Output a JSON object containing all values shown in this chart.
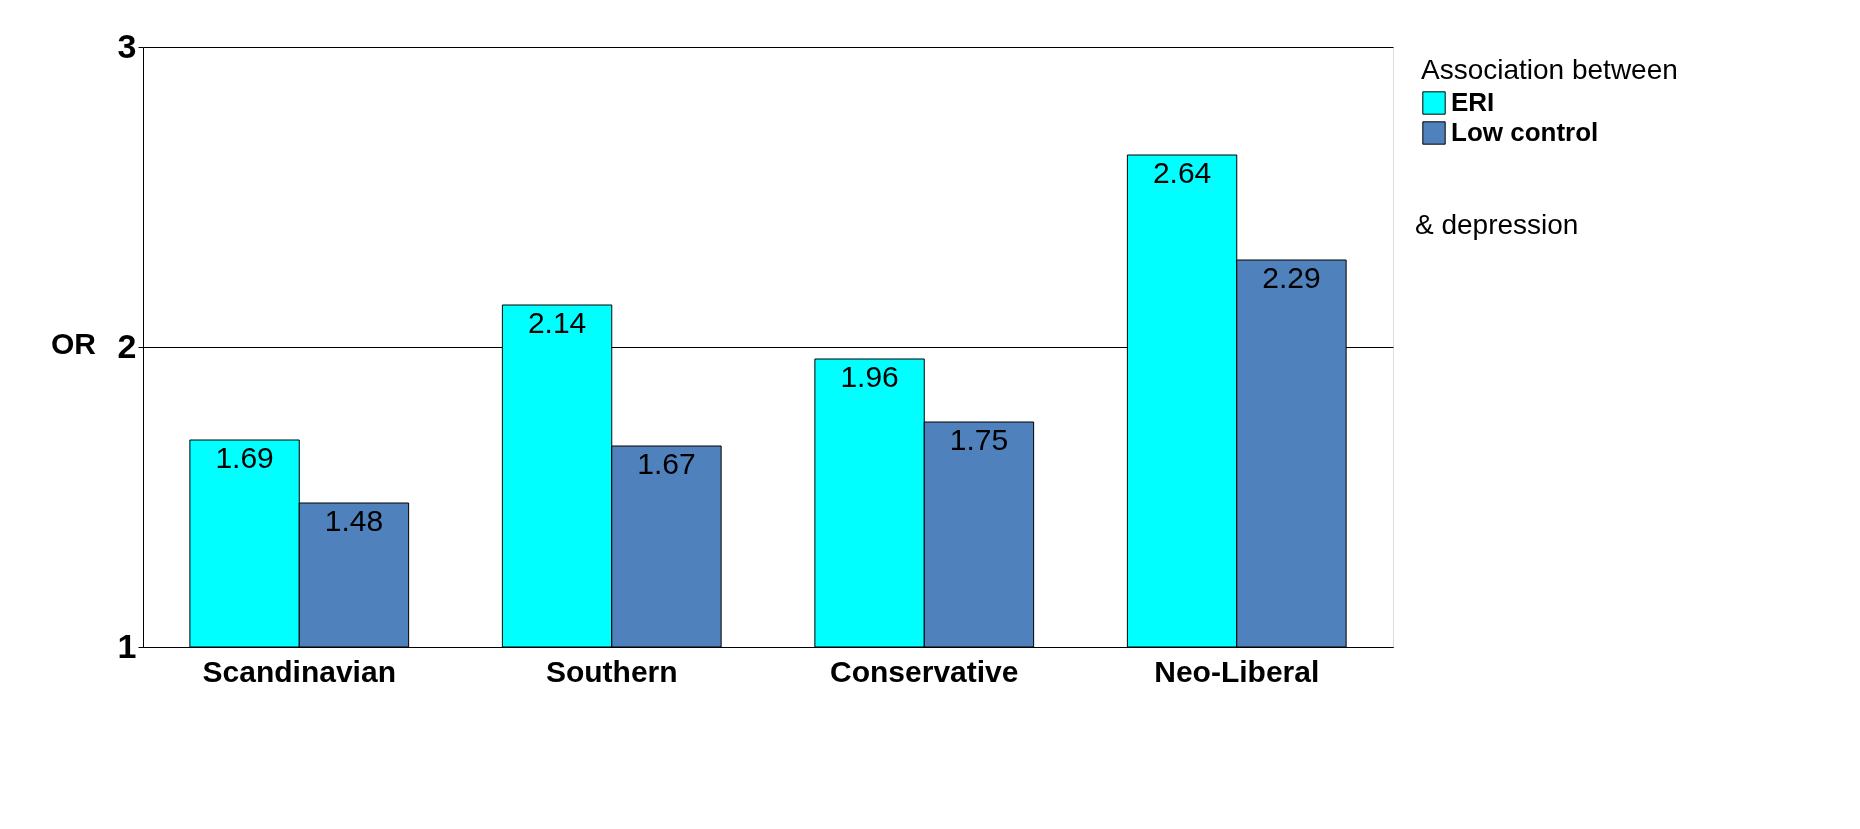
{
  "chart_data": {
    "type": "bar",
    "categories": [
      "Scandinavian",
      "Southern",
      "Conservative",
      "Neo-Liberal"
    ],
    "series": [
      {
        "name": "ERI",
        "color": "#00ffff",
        "values": [
          1.69,
          2.14,
          1.96,
          2.64
        ]
      },
      {
        "name": "Low control",
        "color": "#4f81bd",
        "values": [
          1.48,
          1.67,
          1.75,
          2.29
        ]
      }
    ],
    "ylabel": "OR",
    "ylim": [
      1,
      3
    ],
    "yticks": [
      1,
      2,
      3
    ],
    "grid": "y",
    "data_labels": true,
    "legend": "right",
    "legend_title": "Association between",
    "annotations": [
      "& depression"
    ]
  }
}
